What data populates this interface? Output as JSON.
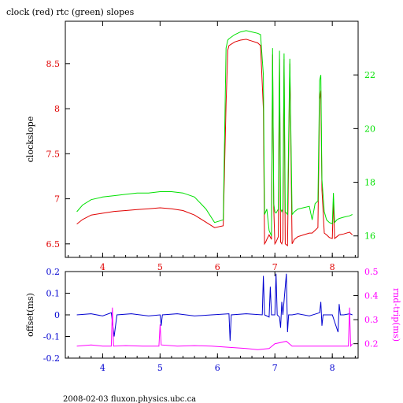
{
  "title": "clock (red) rtc (green) slopes",
  "footer": "2008-02-03 fluxon.physics.ubc.ca",
  "colors": {
    "clock": "#e00000",
    "rtc": "#00e000",
    "offset": "#0000d0",
    "rndtrip": "#ff00ff",
    "axis": "#000000"
  },
  "chart_data": [
    {
      "type": "line",
      "title": "clock (red) rtc (green) slopes",
      "xlabel": "",
      "ylabel": "clockslope",
      "y2label": "",
      "xlim": [
        3.35,
        8.45
      ],
      "ylim": [
        6.35,
        8.97
      ],
      "y2lim": [
        15.2,
        24.0
      ],
      "xticks": [
        "4",
        "5",
        "6",
        "7",
        "8"
      ],
      "xtick_values": [
        4,
        5,
        6,
        7,
        8
      ],
      "yticks": [
        "6.5",
        "7",
        "7.5",
        "8",
        "8.5"
      ],
      "ytick_values": [
        6.5,
        7,
        7.5,
        8,
        8.5
      ],
      "y2ticks": [
        "16",
        "18",
        "20",
        "22"
      ],
      "y2tick_values": [
        16,
        18,
        20,
        22
      ],
      "series": [
        {
          "name": "clock",
          "axis": "left",
          "x": [
            3.55,
            3.65,
            3.8,
            4.0,
            4.2,
            4.4,
            4.6,
            4.8,
            5.0,
            5.2,
            5.4,
            5.6,
            5.8,
            5.95,
            6.1,
            6.15,
            6.18,
            6.2,
            6.3,
            6.4,
            6.5,
            6.6,
            6.7,
            6.75,
            6.8,
            6.82,
            6.84,
            6.86,
            6.9,
            6.94,
            6.96,
            6.98,
            7.0,
            7.02,
            7.06,
            7.08,
            7.1,
            7.12,
            7.14,
            7.16,
            7.18,
            7.22,
            7.26,
            7.3,
            7.34,
            7.4,
            7.5,
            7.6,
            7.65,
            7.7,
            7.75,
            7.78,
            7.8,
            7.82,
            7.86,
            7.9,
            7.95,
            8.0,
            8.02,
            8.04,
            8.08,
            8.12,
            8.2,
            8.3,
            8.35
          ],
          "y": [
            6.72,
            6.77,
            6.82,
            6.84,
            6.86,
            6.87,
            6.88,
            6.89,
            6.9,
            6.89,
            6.87,
            6.82,
            6.74,
            6.68,
            6.7,
            8.05,
            8.65,
            8.7,
            8.74,
            8.76,
            8.77,
            8.75,
            8.73,
            8.7,
            8.0,
            6.5,
            6.52,
            6.55,
            6.6,
            6.55,
            8.6,
            6.9,
            6.5,
            6.52,
            6.58,
            8.55,
            6.52,
            6.5,
            6.55,
            8.55,
            6.5,
            6.48,
            8.5,
            6.5,
            6.55,
            6.58,
            6.6,
            6.62,
            6.62,
            6.65,
            6.68,
            8.1,
            8.2,
            7.1,
            6.62,
            6.6,
            6.57,
            6.56,
            7.0,
            6.56,
            6.58,
            6.6,
            6.61,
            6.63,
            6.6
          ]
        },
        {
          "name": "rtc",
          "axis": "right",
          "x": [
            3.55,
            3.65,
            3.8,
            4.0,
            4.2,
            4.4,
            4.6,
            4.8,
            5.0,
            5.2,
            5.4,
            5.6,
            5.8,
            5.95,
            6.1,
            6.15,
            6.18,
            6.2,
            6.3,
            6.4,
            6.5,
            6.6,
            6.7,
            6.75,
            6.8,
            6.82,
            6.84,
            6.86,
            6.9,
            6.94,
            6.96,
            6.98,
            7.0,
            7.02,
            7.06,
            7.08,
            7.1,
            7.12,
            7.14,
            7.16,
            7.18,
            7.22,
            7.26,
            7.3,
            7.34,
            7.4,
            7.5,
            7.6,
            7.65,
            7.7,
            7.75,
            7.78,
            7.8,
            7.82,
            7.86,
            7.9,
            7.95,
            8.0,
            8.02,
            8.04,
            8.08,
            8.12,
            8.2,
            8.3,
            8.35
          ],
          "y": [
            16.9,
            17.15,
            17.35,
            17.45,
            17.5,
            17.55,
            17.6,
            17.6,
            17.65,
            17.65,
            17.6,
            17.45,
            17.0,
            16.5,
            16.6,
            23.0,
            23.3,
            23.35,
            23.5,
            23.6,
            23.65,
            23.6,
            23.55,
            23.5,
            22.0,
            16.8,
            16.9,
            17.0,
            16.2,
            16.0,
            23.0,
            17.2,
            16.9,
            16.85,
            17.0,
            22.9,
            17.0,
            16.9,
            17.0,
            22.8,
            16.9,
            16.8,
            22.6,
            16.8,
            16.9,
            17.0,
            17.05,
            17.1,
            16.6,
            17.2,
            17.3,
            21.8,
            22.0,
            18.1,
            16.9,
            16.6,
            16.5,
            16.45,
            17.6,
            16.5,
            16.6,
            16.65,
            16.7,
            16.75,
            16.8
          ]
        }
      ]
    },
    {
      "type": "line",
      "xlabel": "",
      "ylabel": "offset(ms)",
      "y2label": "rnd-trip(ms)",
      "xlim": [
        3.35,
        8.45
      ],
      "ylim": [
        -0.2,
        0.2
      ],
      "y2lim": [
        0.14,
        0.5
      ],
      "xticks": [
        "4",
        "5",
        "6",
        "7",
        "8"
      ],
      "xtick_values": [
        4,
        5,
        6,
        7,
        8
      ],
      "yticks": [
        "-0.2",
        "-0.1",
        "0",
        "0.1",
        "0.2"
      ],
      "ytick_values": [
        -0.2,
        -0.1,
        0,
        0.1,
        0.2
      ],
      "y2ticks": [
        "0.2",
        "0.3",
        "0.4",
        "0.5"
      ],
      "y2tick_values": [
        0.2,
        0.3,
        0.4,
        0.5
      ],
      "series": [
        {
          "name": "offset",
          "axis": "left",
          "x": [
            3.55,
            3.8,
            4.0,
            4.15,
            4.2,
            4.25,
            4.5,
            4.8,
            5.0,
            5.02,
            5.04,
            5.3,
            5.6,
            5.9,
            6.2,
            6.22,
            6.24,
            6.5,
            6.78,
            6.8,
            6.82,
            6.9,
            6.92,
            6.94,
            7.0,
            7.02,
            7.04,
            7.08,
            7.1,
            7.12,
            7.14,
            7.2,
            7.22,
            7.24,
            7.3,
            7.4,
            7.6,
            7.78,
            7.8,
            7.82,
            7.84,
            8.0,
            8.1,
            8.12,
            8.14,
            8.2,
            8.3,
            8.35
          ],
          "y": [
            0.0,
            0.005,
            -0.005,
            0.01,
            -0.1,
            0.0,
            0.005,
            -0.005,
            0.0,
            -0.05,
            0.0,
            0.005,
            -0.005,
            0.0,
            0.005,
            -0.12,
            0.0,
            0.005,
            0.0,
            0.18,
            0.0,
            -0.01,
            0.13,
            0.0,
            0.0,
            0.19,
            0.0,
            -0.01,
            -0.06,
            0.06,
            0.0,
            0.19,
            -0.08,
            0.0,
            0.0,
            0.005,
            -0.005,
            0.01,
            0.06,
            -0.05,
            0.0,
            0.0,
            -0.08,
            0.05,
            0.0,
            0.0,
            0.005,
            0.0
          ]
        },
        {
          "name": "rnd-trip",
          "axis": "right",
          "x": [
            3.55,
            3.8,
            4.0,
            4.15,
            4.17,
            4.19,
            4.4,
            4.7,
            4.98,
            5.0,
            5.02,
            5.3,
            5.6,
            5.9,
            6.2,
            6.5,
            6.7,
            6.9,
            7.0,
            7.2,
            7.3,
            7.5,
            7.7,
            7.9,
            8.1,
            8.28,
            8.3,
            8.32,
            8.35
          ],
          "y": [
            0.19,
            0.195,
            0.19,
            0.19,
            0.35,
            0.19,
            0.192,
            0.19,
            0.19,
            0.28,
            0.195,
            0.19,
            0.192,
            0.19,
            0.185,
            0.18,
            0.175,
            0.18,
            0.2,
            0.21,
            0.19,
            0.19,
            0.19,
            0.19,
            0.19,
            0.19,
            0.35,
            0.19,
            0.2
          ]
        }
      ]
    }
  ]
}
